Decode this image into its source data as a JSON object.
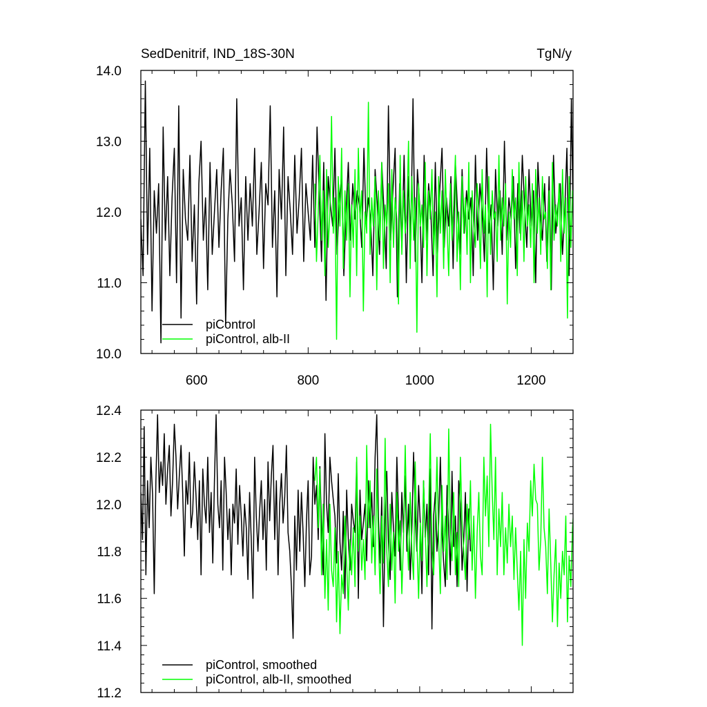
{
  "header": {
    "left_title": "SedDenitrif, IND_18S-30N",
    "right_title": "TgN/y"
  },
  "colors": {
    "axis": "#000000",
    "piControl": "#000000",
    "alb_II": "#00ff00"
  },
  "chart_data": [
    {
      "type": "line",
      "panel": "top",
      "xlim": [
        500,
        1275
      ],
      "ylim": [
        10.0,
        14.0
      ],
      "grid": false,
      "legend_position": "bottom-left",
      "x_ticks": [
        600,
        800,
        1000,
        1200
      ],
      "x_tick_labels": [
        "600",
        "800",
        "1000",
        "1200"
      ],
      "y_ticks": [
        10.0,
        11.0,
        12.0,
        13.0,
        14.0
      ],
      "y_tick_labels": [
        "10.0",
        "11.0",
        "12.0",
        "13.0",
        "14.0"
      ],
      "series": [
        {
          "name": "piControl",
          "color": "#000000",
          "x_start": 500,
          "x_step": 4,
          "values": [
            11.9,
            11.1,
            13.85,
            11.4,
            12.9,
            10.6,
            12.3,
            11.7,
            12.4,
            10.15,
            13.2,
            11.6,
            12.5,
            11.1,
            12.2,
            12.9,
            11.0,
            13.5,
            10.5,
            12.6,
            11.9,
            11.6,
            12.8,
            11.3,
            12.1,
            10.7,
            12.4,
            13.0,
            11.6,
            12.2,
            10.9,
            12.7,
            11.4,
            12.0,
            12.6,
            11.5,
            12.3,
            12.9,
            10.4,
            11.9,
            12.6,
            12.1,
            11.3,
            13.6,
            11.8,
            12.2,
            10.9,
            12.5,
            11.6,
            12.4,
            11.8,
            12.9,
            11.4,
            12.0,
            12.7,
            11.2,
            12.4,
            12.1,
            13.5,
            11.5,
            12.3,
            10.8,
            12.6,
            11.9,
            13.2,
            11.1,
            12.5,
            12.0,
            11.4,
            12.8,
            11.7,
            12.2,
            12.9,
            11.3,
            12.4,
            12.0,
            11.6,
            12.8,
            11.5,
            13.2,
            12.2,
            11.3,
            12.7,
            10.75,
            12.5,
            12.1,
            11.8,
            12.9,
            11.4,
            12.2,
            12.5,
            11.1,
            12.0,
            12.7,
            11.6,
            12.4,
            11.9,
            12.3,
            12.1,
            11.5,
            12.9,
            11.8,
            12.2,
            11.9,
            11.1,
            12.6,
            12.1,
            11.4,
            12.7,
            12.0,
            11.2,
            13.5,
            11.6,
            12.3,
            12.9,
            10.8,
            12.4,
            11.5,
            12.8,
            11.0,
            12.5,
            11.6,
            13.6,
            11.3,
            12.6,
            12.1,
            11.0,
            12.8,
            11.6,
            12.4,
            12.0,
            11.1,
            12.7,
            11.4,
            12.3,
            12.9,
            11.5,
            12.2,
            11.8,
            12.5,
            11.2,
            12.7,
            12.0,
            11.4,
            12.6,
            11.7,
            12.3,
            11.9,
            12.2,
            11.1,
            12.8,
            11.6,
            12.4,
            12.0,
            11.3,
            12.9,
            11.7,
            12.1,
            10.9,
            12.6,
            11.8,
            12.3,
            11.4,
            13.0,
            11.6,
            12.2,
            11.9,
            12.5,
            11.2,
            12.4,
            11.7,
            12.8,
            12.1,
            11.5,
            12.6,
            11.8,
            12.3,
            11.0,
            12.7,
            12.0,
            11.6,
            12.4,
            11.3,
            12.5,
            10.9,
            12.8,
            11.7,
            12.1,
            12.4,
            11.4,
            12.0,
            12.9,
            11.1,
            13.6,
            11.5,
            12.3,
            11.9,
            12.6,
            11.2,
            12.2,
            11.8,
            12.7,
            11.5,
            12.0,
            10.1,
            12.4,
            11.7,
            12.8,
            11.3,
            12.1,
            11.9,
            12.5,
            10.9,
            11.8,
            12.3,
            11.1
          ]
        },
        {
          "name": "piControl, alb-II",
          "color": "#00ff00",
          "x_start": 812,
          "x_step": 3,
          "values": [
            12.4,
            11.3,
            12.0,
            12.8,
            11.6,
            12.3,
            11.1,
            12.6,
            11.5,
            12.0,
            13.35,
            11.7,
            12.2,
            10.2,
            12.5,
            11.8,
            12.9,
            11.2,
            12.3,
            11.6,
            12.4,
            10.8,
            12.1,
            11.5,
            12.6,
            11.1,
            12.9,
            11.9,
            12.3,
            10.6,
            12.0,
            11.7,
            13.55,
            11.4,
            12.2,
            11.8,
            12.5,
            10.9,
            12.3,
            11.6,
            12.7,
            11.2,
            12.1,
            11.8,
            12.4,
            11.0,
            12.6,
            11.5,
            12.2,
            11.9,
            10.7,
            12.8,
            11.4,
            12.3,
            11.7,
            12.0,
            13.0,
            11.2,
            12.5,
            11.6,
            12.2,
            10.3,
            12.4,
            11.8,
            12.1,
            11.5,
            12.7,
            11.1,
            12.3,
            11.9,
            12.6,
            11.4,
            12.0,
            10.8,
            12.5,
            11.7,
            12.3,
            11.2,
            12.6,
            11.8,
            11.1,
            12.4,
            11.6,
            12.1,
            12.8,
            11.3,
            12.0,
            10.9,
            12.5,
            11.7,
            12.2,
            11.4,
            12.7,
            11.0,
            12.3,
            11.8,
            11.5,
            12.4,
            12.0,
            11.2,
            12.6,
            11.7,
            12.1,
            10.8,
            12.5,
            11.4,
            12.3,
            11.9,
            12.0,
            11.3,
            12.8,
            11.6,
            12.2,
            11.8,
            12.4,
            10.7,
            12.0,
            11.5,
            12.6,
            11.9,
            12.2,
            11.1,
            12.7,
            11.6,
            12.3,
            11.3,
            12.5,
            11.8,
            12.1,
            11.5,
            12.4,
            11.0,
            12.6,
            11.7,
            12.2,
            11.4,
            12.5,
            11.9,
            12.0,
            11.2,
            12.3,
            10.9,
            12.7,
            11.6,
            12.1,
            11.8,
            12.4,
            11.3,
            12.6,
            11.7,
            12.2,
            10.5,
            12.5,
            11.5,
            12.3,
            11.9,
            12.0,
            11.1,
            12.8,
            11.6,
            12.2,
            11.9,
            12.4,
            11.3,
            12.6,
            11.7,
            12.1,
            12.5,
            11.4,
            12.8,
            11.0,
            12.3,
            11.8,
            12.0,
            11.5,
            12.4,
            11.9,
            12.2,
            11.2,
            12.6,
            10.6,
            12.3,
            11.7,
            12.1,
            11.4,
            12.5,
            11.8,
            12.2,
            11.3,
            12.7,
            11.6,
            12.0,
            13.2,
            11.5,
            12.3,
            10.7,
            12.6,
            11.8,
            12.2,
            11.4,
            12.4,
            11.9,
            12.1,
            11.0,
            12.6,
            11.7,
            12.3,
            11.5,
            12.5,
            11.2,
            12.0,
            11.8,
            12.4,
            10.9,
            12.2,
            11.6,
            12.7,
            11.3,
            12.1,
            11.9,
            12.4,
            11.5,
            12.6,
            11.8,
            12.0,
            11.3,
            12.3,
            11.7,
            12.2,
            10.5,
            12.5,
            11.6,
            12.1,
            11.9,
            12.4,
            11.4,
            12.7,
            11.0,
            12.3,
            11.8,
            12.0,
            11.2,
            12.5,
            11.7,
            12.3,
            10.1,
            12.6,
            11.5,
            12.2,
            12.7,
            11.9,
            13.5,
            11.3,
            12.0,
            10.1,
            13.7,
            11.6,
            12.2,
            11.8,
            12.4,
            11.5,
            12.1,
            12.6,
            11.3,
            12.3,
            11.7,
            12.0,
            12.9,
            11.1,
            12.4,
            11.6,
            12.2,
            12.3,
            11.8,
            12.5,
            11.4,
            12.1,
            10.15,
            12.6,
            11.9,
            12.2,
            11.5,
            12.4,
            11.0,
            12.8,
            11.6,
            12.2,
            11.7,
            12.4,
            12.9,
            11.0,
            11.8,
            12.3,
            12.1,
            10.6,
            12.5,
            11.6
          ]
        }
      ]
    },
    {
      "type": "line",
      "panel": "bottom",
      "xlim": [
        500,
        1275
      ],
      "ylim": [
        11.2,
        12.4
      ],
      "grid": false,
      "legend_position": "bottom-left",
      "x_ticks": [
        600,
        800,
        1000,
        1200
      ],
      "y_ticks": [
        11.2,
        11.4,
        11.6,
        11.8,
        12.0,
        12.2,
        12.4
      ],
      "y_tick_labels": [
        "11.2",
        "11.4",
        "11.6",
        "11.8",
        "12.0",
        "12.2",
        "12.4"
      ],
      "series": [
        {
          "name": "piControl, smoothed",
          "color": "#000000",
          "x_start": 500,
          "x_step": 3,
          "values": [
            12.05,
            11.85,
            12.33,
            11.7,
            12.1,
            11.9,
            12.2,
            12.04,
            11.62,
            12.1,
            12.38,
            12.05,
            12.18,
            12.08,
            12.3,
            12.0,
            12.15,
            12.25,
            11.95,
            12.1,
            12.34,
            12.2,
            11.98,
            12.12,
            12.25,
            12.05,
            11.78,
            12.1,
            12.0,
            12.22,
            11.9,
            11.97,
            12.18,
            12.03,
            11.85,
            12.1,
            11.7,
            12.15,
            12.0,
            11.92,
            12.2,
            11.88,
            12.05,
            11.75,
            12.1,
            12.38,
            12.0,
            11.9,
            12.1,
            11.72,
            12.2,
            12.05,
            11.85,
            11.98,
            11.7,
            12.0,
            11.92,
            12.15,
            11.83,
            12.08,
            11.95,
            11.78,
            12.0,
            11.9,
            11.68,
            12.05,
            11.85,
            11.6,
            12.2,
            11.95,
            11.8,
            11.97,
            12.1,
            11.85,
            12.02,
            11.72,
            12.18,
            11.93,
            12.12,
            12.25,
            11.85,
            12.1,
            11.7,
            12.0,
            12.13,
            11.92,
            12.03,
            12.25,
            11.88,
            11.8,
            11.65,
            11.43,
            11.95,
            11.72,
            12.06,
            11.8,
            12.05,
            11.87,
            11.65,
            11.93,
            12.1,
            11.7,
            11.78,
            12.2,
            12.0,
            12.08,
            11.85,
            12.16,
            11.9,
            11.7,
            12.3,
            12.0,
            11.88,
            12.2,
            12.1,
            12.02,
            11.95,
            11.75,
            12.13,
            11.84,
            11.72,
            11.97,
            11.6,
            12.06,
            11.85,
            11.72,
            12.0,
            11.93,
            11.88,
            12.18,
            11.6,
            12.06,
            11.85,
            11.92,
            12.0,
            11.76,
            12.1,
            11.9,
            12.05,
            11.82,
            12.2,
            12.38,
            11.95,
            11.75,
            12.03,
            11.48,
            11.93,
            12.14,
            11.85,
            11.68,
            12.05,
            11.9,
            11.78,
            12.2,
            11.95,
            11.72,
            12.05,
            11.88,
            12.12,
            11.8,
            12.0,
            11.68,
            11.9,
            12.22,
            11.95,
            11.8,
            12.08,
            11.92,
            11.62,
            12.1,
            11.86,
            12.0,
            11.7,
            12.15,
            11.47,
            11.95,
            12.05,
            11.8,
            11.92,
            12.2,
            11.88,
            11.75,
            11.65,
            12.08,
            11.9,
            11.7,
            12.14,
            11.82,
            11.95,
            11.65,
            12.1,
            12.0,
            11.72,
            11.85,
            12.05,
            11.63,
            11.98,
            11.8
          ]
        },
        {
          "name": "piControl, alb-II, smoothed",
          "color": "#00ff00",
          "x_start": 812,
          "x_step": 3,
          "values": [
            12.1,
            12.2,
            11.9,
            12.15,
            11.7,
            12.0,
            11.6,
            11.85,
            11.55,
            12.0,
            11.72,
            11.65,
            11.9,
            11.5,
            11.8,
            11.45,
            11.7,
            11.62,
            11.95,
            11.75,
            11.55,
            11.85,
            11.7,
            11.9,
            11.65,
            12.2,
            11.8,
            11.95,
            11.72,
            11.85,
            11.68,
            12.25,
            11.9,
            12.1,
            11.75,
            11.95,
            11.7,
            12.15,
            11.85,
            11.62,
            11.95,
            11.75,
            12.28,
            11.8,
            11.65,
            12.0,
            11.72,
            11.88,
            11.58,
            12.05,
            11.8,
            11.93,
            11.62,
            11.85,
            12.25,
            11.9,
            11.72,
            12.05,
            11.8,
            11.68,
            12.18,
            11.85,
            11.6,
            11.92,
            11.76,
            12.1,
            11.88,
            11.65,
            11.97,
            12.3,
            11.8,
            11.7,
            11.92,
            12.2,
            11.85,
            11.62,
            12.08,
            11.8,
            11.95,
            11.68,
            12.32,
            11.9,
            11.76,
            12.05,
            11.7,
            11.88,
            11.65,
            12.2,
            11.92,
            11.8,
            11.68,
            12.0,
            11.85,
            12.1,
            11.72,
            11.95,
            11.6,
            11.88,
            12.05,
            11.78,
            11.7,
            12.2,
            11.95,
            12.12,
            11.82,
            12.34,
            12.05,
            11.85,
            12.2,
            11.7,
            11.98,
            11.82,
            12.05,
            11.7,
            11.9,
            11.75,
            12.0,
            11.82,
            11.95,
            11.68,
            11.9,
            11.72,
            11.55,
            11.8,
            11.4,
            11.85,
            11.6,
            11.92,
            11.8,
            12.1,
            11.95,
            12.17,
            12.02,
            12.0,
            11.72,
            11.85,
            12.2,
            11.9,
            11.82,
            11.62,
            11.98,
            11.75,
            11.5,
            11.7,
            11.85,
            11.48,
            11.75,
            11.6,
            11.8,
            11.7,
            11.95,
            11.5,
            11.78,
            11.65,
            11.9,
            12.0,
            11.8,
            11.62,
            11.95,
            12.05,
            11.72,
            11.82,
            11.65
          ]
        }
      ]
    }
  ]
}
